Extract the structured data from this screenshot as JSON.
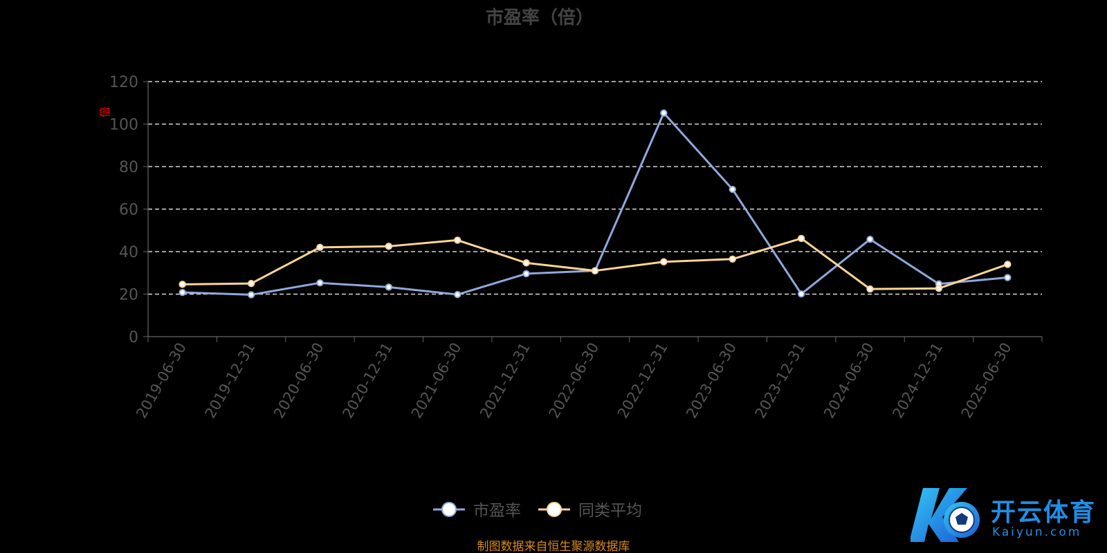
{
  "chart_data": {
    "type": "line",
    "title": "市盈率（倍）",
    "ylabel": "倍",
    "source": "制图数据来自恒生聚源数据库",
    "categories": [
      "2019-06-30",
      "2019-12-31",
      "2020-06-30",
      "2020-12-31",
      "2021-06-30",
      "2021-12-31",
      "2022-06-30",
      "2022-12-31",
      "2023-06-30",
      "2023-12-31",
      "2024-06-30",
      "2024-12-31",
      "2025-06-30"
    ],
    "ylim": [
      0,
      120
    ],
    "yticks": [
      0,
      20,
      40,
      60,
      80,
      100,
      120
    ],
    "grid": true,
    "legend_position": "bottom",
    "series": [
      {
        "name": "市盈率",
        "color": "#8fa9dc",
        "values": [
          20.8,
          19.7,
          25.3,
          23.3,
          19.8,
          29.6,
          31.0,
          105.2,
          69.3,
          20.1,
          45.8,
          24.8,
          27.8
        ]
      },
      {
        "name": "同类平均",
        "color": "#ffd596",
        "values": [
          24.6,
          25.0,
          42.0,
          42.5,
          45.4,
          34.7,
          31.0,
          35.2,
          36.5,
          46.2,
          22.4,
          22.7,
          34.0
        ]
      }
    ]
  },
  "colors": {
    "title": "#444444",
    "axis": "#666666",
    "tick_label": "#555555",
    "grid": "#ffffff",
    "ylabel": "#ff0000",
    "source": "#d88a1c",
    "legend_text": "#555555"
  },
  "watermark": {
    "brand": "开云体育",
    "domain": "Kaiyun.com"
  }
}
